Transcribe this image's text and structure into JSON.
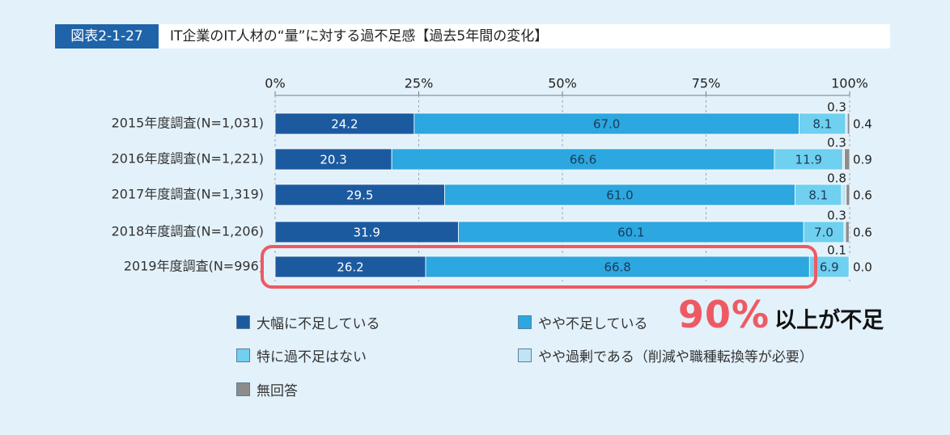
{
  "figure": {
    "number": "図表2-1-27",
    "title": "IT企業のIT人材の“量”に対する過不足感【過去5年間の変化】"
  },
  "callout": {
    "big": "90%",
    "small": "以上が不足"
  },
  "colors": {
    "background": "#e3f1fa",
    "series": [
      "#1c5aa0",
      "#2ca7df",
      "#6fd0f0",
      "#bfe5f4",
      "#8c8c8c"
    ],
    "highlight": "#ee5a63",
    "grid": "#9aa7b4"
  },
  "chart_data": {
    "type": "bar",
    "orientation": "horizontal",
    "stacked": true,
    "xlim": [
      0,
      100
    ],
    "x_ticks": [
      "0%",
      "25%",
      "50%",
      "75%",
      "100%"
    ],
    "categories": [
      "2015年度調査(N=1,031)",
      "2016年度調査(N=1,221)",
      "2017年度調査(N=1,319)",
      "2018年度調査(N=1,206)",
      "2019年度調査(N=996)"
    ],
    "series": [
      {
        "name": "大幅に不足している",
        "values": [
          24.2,
          20.3,
          29.5,
          31.9,
          26.2
        ]
      },
      {
        "name": "やや不足している",
        "values": [
          67.0,
          66.6,
          61.0,
          60.1,
          66.8
        ]
      },
      {
        "name": "特に過不足はない",
        "values": [
          8.1,
          11.9,
          8.1,
          7.0,
          6.9
        ]
      },
      {
        "name": "やや過剰である（削減や職種転換等が必要）",
        "values": [
          0.3,
          0.3,
          0.8,
          0.3,
          0.1
        ]
      },
      {
        "name": "無回答",
        "values": [
          0.4,
          0.9,
          0.6,
          0.6,
          0.0
        ]
      }
    ],
    "labels": {
      "series_0": [
        "24.2",
        "20.3",
        "29.5",
        "31.9",
        "26.2"
      ],
      "series_1": [
        "67.0",
        "66.6",
        "61.0",
        "60.1",
        "66.8"
      ],
      "series_2": [
        "8.1",
        "11.9",
        "8.1",
        "7.0",
        "6.9"
      ],
      "series_3": [
        "0.3",
        "0.3",
        "0.8",
        "0.3",
        "0.1"
      ],
      "series_4": [
        "0.4",
        "0.9",
        "0.6",
        "0.6",
        "0.0"
      ]
    },
    "highlight_category": "2019年度調査(N=996)"
  }
}
